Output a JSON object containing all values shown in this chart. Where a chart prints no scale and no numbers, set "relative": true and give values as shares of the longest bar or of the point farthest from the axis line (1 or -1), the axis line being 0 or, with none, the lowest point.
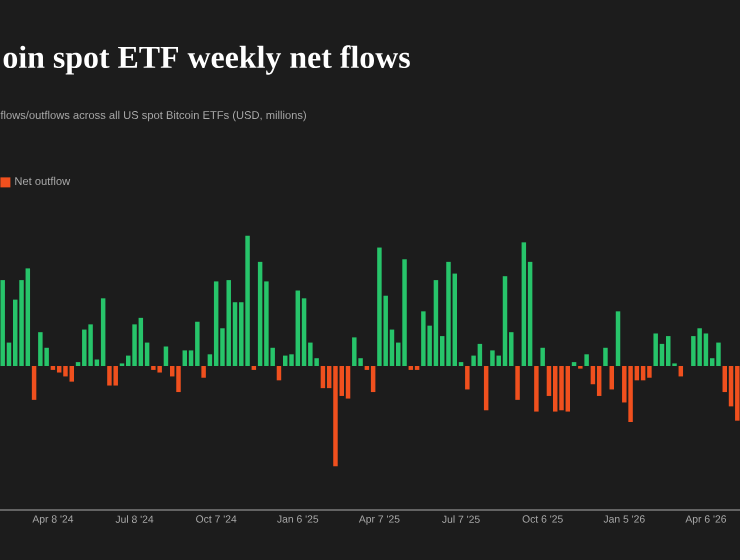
{
  "chart_data": {
    "type": "bar",
    "title": "oin spot ETF weekly net flows",
    "subtitle": "flows/outflows across all US spot Bitcoin ETFs (USD, millions)",
    "relative": true,
    "legend": "top left",
    "x": [
      "2024-02-12",
      "2024-02-19",
      "2024-02-26",
      "2024-03-04",
      "2024-03-11",
      "2024-03-18",
      "2024-03-25",
      "2024-04-01",
      "2024-04-08",
      "2024-04-15",
      "2024-04-22",
      "2024-04-29",
      "2024-05-06",
      "2024-05-13",
      "2024-05-20",
      "2024-05-27",
      "2024-06-03",
      "2024-06-10",
      "2024-06-17",
      "2024-06-24",
      "2024-07-01",
      "2024-07-08",
      "2024-07-15",
      "2024-07-22",
      "2024-07-29",
      "2024-08-05",
      "2024-08-12",
      "2024-08-19",
      "2024-08-26",
      "2024-09-02",
      "2024-09-09",
      "2024-09-16",
      "2024-09-23",
      "2024-09-30",
      "2024-10-07",
      "2024-10-14",
      "2024-10-21",
      "2024-10-28",
      "2024-11-04",
      "2024-11-11",
      "2024-11-18",
      "2024-11-25",
      "2024-12-02",
      "2024-12-09",
      "2024-12-16",
      "2024-12-23",
      "2024-12-30",
      "2025-01-06",
      "2025-01-13",
      "2025-01-20",
      "2025-01-27",
      "2025-02-03",
      "2025-02-10",
      "2025-02-17",
      "2025-02-24",
      "2025-03-03",
      "2025-03-10",
      "2025-03-17",
      "2025-03-24",
      "2025-03-31",
      "2025-04-07",
      "2025-04-14",
      "2025-04-21",
      "2025-04-28",
      "2025-05-05",
      "2025-05-12",
      "2025-05-19",
      "2025-05-26",
      "2025-06-02",
      "2025-06-09",
      "2025-06-16",
      "2025-06-23",
      "2025-06-30",
      "2025-07-07",
      "2025-07-14",
      "2025-07-21",
      "2025-07-28",
      "2025-08-04",
      "2025-08-11",
      "2025-08-18",
      "2025-08-25",
      "2025-09-01",
      "2025-09-08",
      "2025-09-15",
      "2025-09-22",
      "2025-09-29",
      "2025-10-06",
      "2025-10-13",
      "2025-10-20",
      "2025-10-27",
      "2025-11-03",
      "2025-11-10",
      "2025-11-17",
      "2025-11-24",
      "2025-12-01",
      "2025-12-08",
      "2025-12-15",
      "2025-12-22",
      "2025-12-29",
      "2026-01-05",
      "2026-01-12",
      "2026-01-19",
      "2026-01-26",
      "2026-02-02",
      "2026-02-09",
      "2026-02-16",
      "2026-02-23",
      "2026-03-02",
      "2026-03-09",
      "2026-03-16",
      "2026-03-23",
      "2026-03-30",
      "2026-04-06",
      "2026-04-13",
      "2026-04-20",
      "2026-04-27",
      "2026-05-04",
      "2026-05-11"
    ],
    "series": [
      {
        "color": "#27c46a",
        "values": [
          0.66,
          0.18,
          0.51,
          0.66,
          0.75,
          null,
          0.26,
          0.14,
          null,
          null,
          null,
          null,
          0.03,
          0.28,
          0.32,
          0.05,
          0.52,
          null,
          null,
          0.02,
          0.08,
          0.32,
          0.37,
          0.18,
          null,
          null,
          0.15,
          null,
          null,
          0.12,
          0.12,
          0.34,
          null,
          0.09,
          0.65,
          0.29,
          0.66,
          0.49,
          0.49,
          1,
          null,
          0.8,
          0.65,
          0.14,
          null,
          0.08,
          0.09,
          0.58,
          0.52,
          0.18,
          0.06,
          null,
          null,
          null,
          null,
          null,
          0.22,
          0.06,
          null,
          null,
          0.91,
          0.54,
          0.28,
          0.18,
          0.82,
          null,
          null,
          0.42,
          0.31,
          0.66,
          0.23,
          0.8,
          0.71,
          0.03,
          null,
          0.08,
          0.17,
          null,
          0.12,
          0.08,
          0.69,
          0.26,
          null,
          0.95,
          0.8,
          null,
          0.14,
          null,
          null,
          null,
          null,
          0.03,
          null,
          0.09,
          null,
          null,
          0.14,
          null,
          0.42,
          null,
          null,
          null,
          null,
          null,
          0.25,
          0.17,
          0.23,
          0.02,
          null,
          0,
          0.23,
          0.29,
          0.25,
          0.06,
          0.18,
          null,
          null,
          null
        ]
      },
      {
        "name": "Net outflow",
        "color": "#f0501e",
        "values": [
          null,
          null,
          null,
          null,
          null,
          -0.26,
          null,
          null,
          -0.03,
          -0.05,
          -0.08,
          -0.12,
          null,
          null,
          null,
          null,
          null,
          -0.15,
          -0.15,
          null,
          null,
          null,
          null,
          null,
          -0.03,
          -0.05,
          null,
          -0.08,
          -0.2,
          null,
          null,
          null,
          -0.09,
          null,
          null,
          null,
          null,
          null,
          null,
          null,
          -0.03,
          null,
          null,
          null,
          -0.11,
          null,
          null,
          null,
          null,
          null,
          null,
          -0.17,
          -0.17,
          -0.77,
          -0.23,
          -0.25,
          null,
          null,
          -0.03,
          -0.2,
          null,
          null,
          null,
          null,
          null,
          -0.03,
          -0.03,
          null,
          null,
          null,
          null,
          null,
          null,
          null,
          -0.18,
          null,
          null,
          -0.34,
          null,
          null,
          null,
          null,
          -0.26,
          null,
          null,
          -0.35,
          null,
          -0.23,
          -0.35,
          -0.34,
          -0.35,
          null,
          -0.02,
          null,
          -0.14,
          -0.23,
          null,
          -0.18,
          null,
          -0.28,
          -0.43,
          -0.11,
          -0.11,
          -0.09,
          null,
          null,
          null,
          null,
          -0.08,
          null,
          null,
          null,
          null,
          null,
          null,
          -0.2,
          -0.31,
          -0.42
        ]
      }
    ],
    "xlim": [
      "2024-02-09",
      "2026-05-14"
    ],
    "xticks": [
      {
        "value": "2024-04-08",
        "label": "Apr 8 '24"
      },
      {
        "value": "2024-07-08",
        "label": "Jul 8 '24"
      },
      {
        "value": "2024-10-07",
        "label": "Oct 7 '24"
      },
      {
        "value": "2025-01-06",
        "label": "Jan 6 '25"
      },
      {
        "value": "2025-04-07",
        "label": "Apr 7 '25"
      },
      {
        "value": "2025-07-07",
        "label": "Jul 7 '25"
      },
      {
        "value": "2025-10-06",
        "label": "Oct 6 '25"
      },
      {
        "value": "2026-01-05",
        "label": "Jan 5 '26"
      },
      {
        "value": "2026-04-06",
        "label": "Apr 6 '26"
      }
    ]
  }
}
